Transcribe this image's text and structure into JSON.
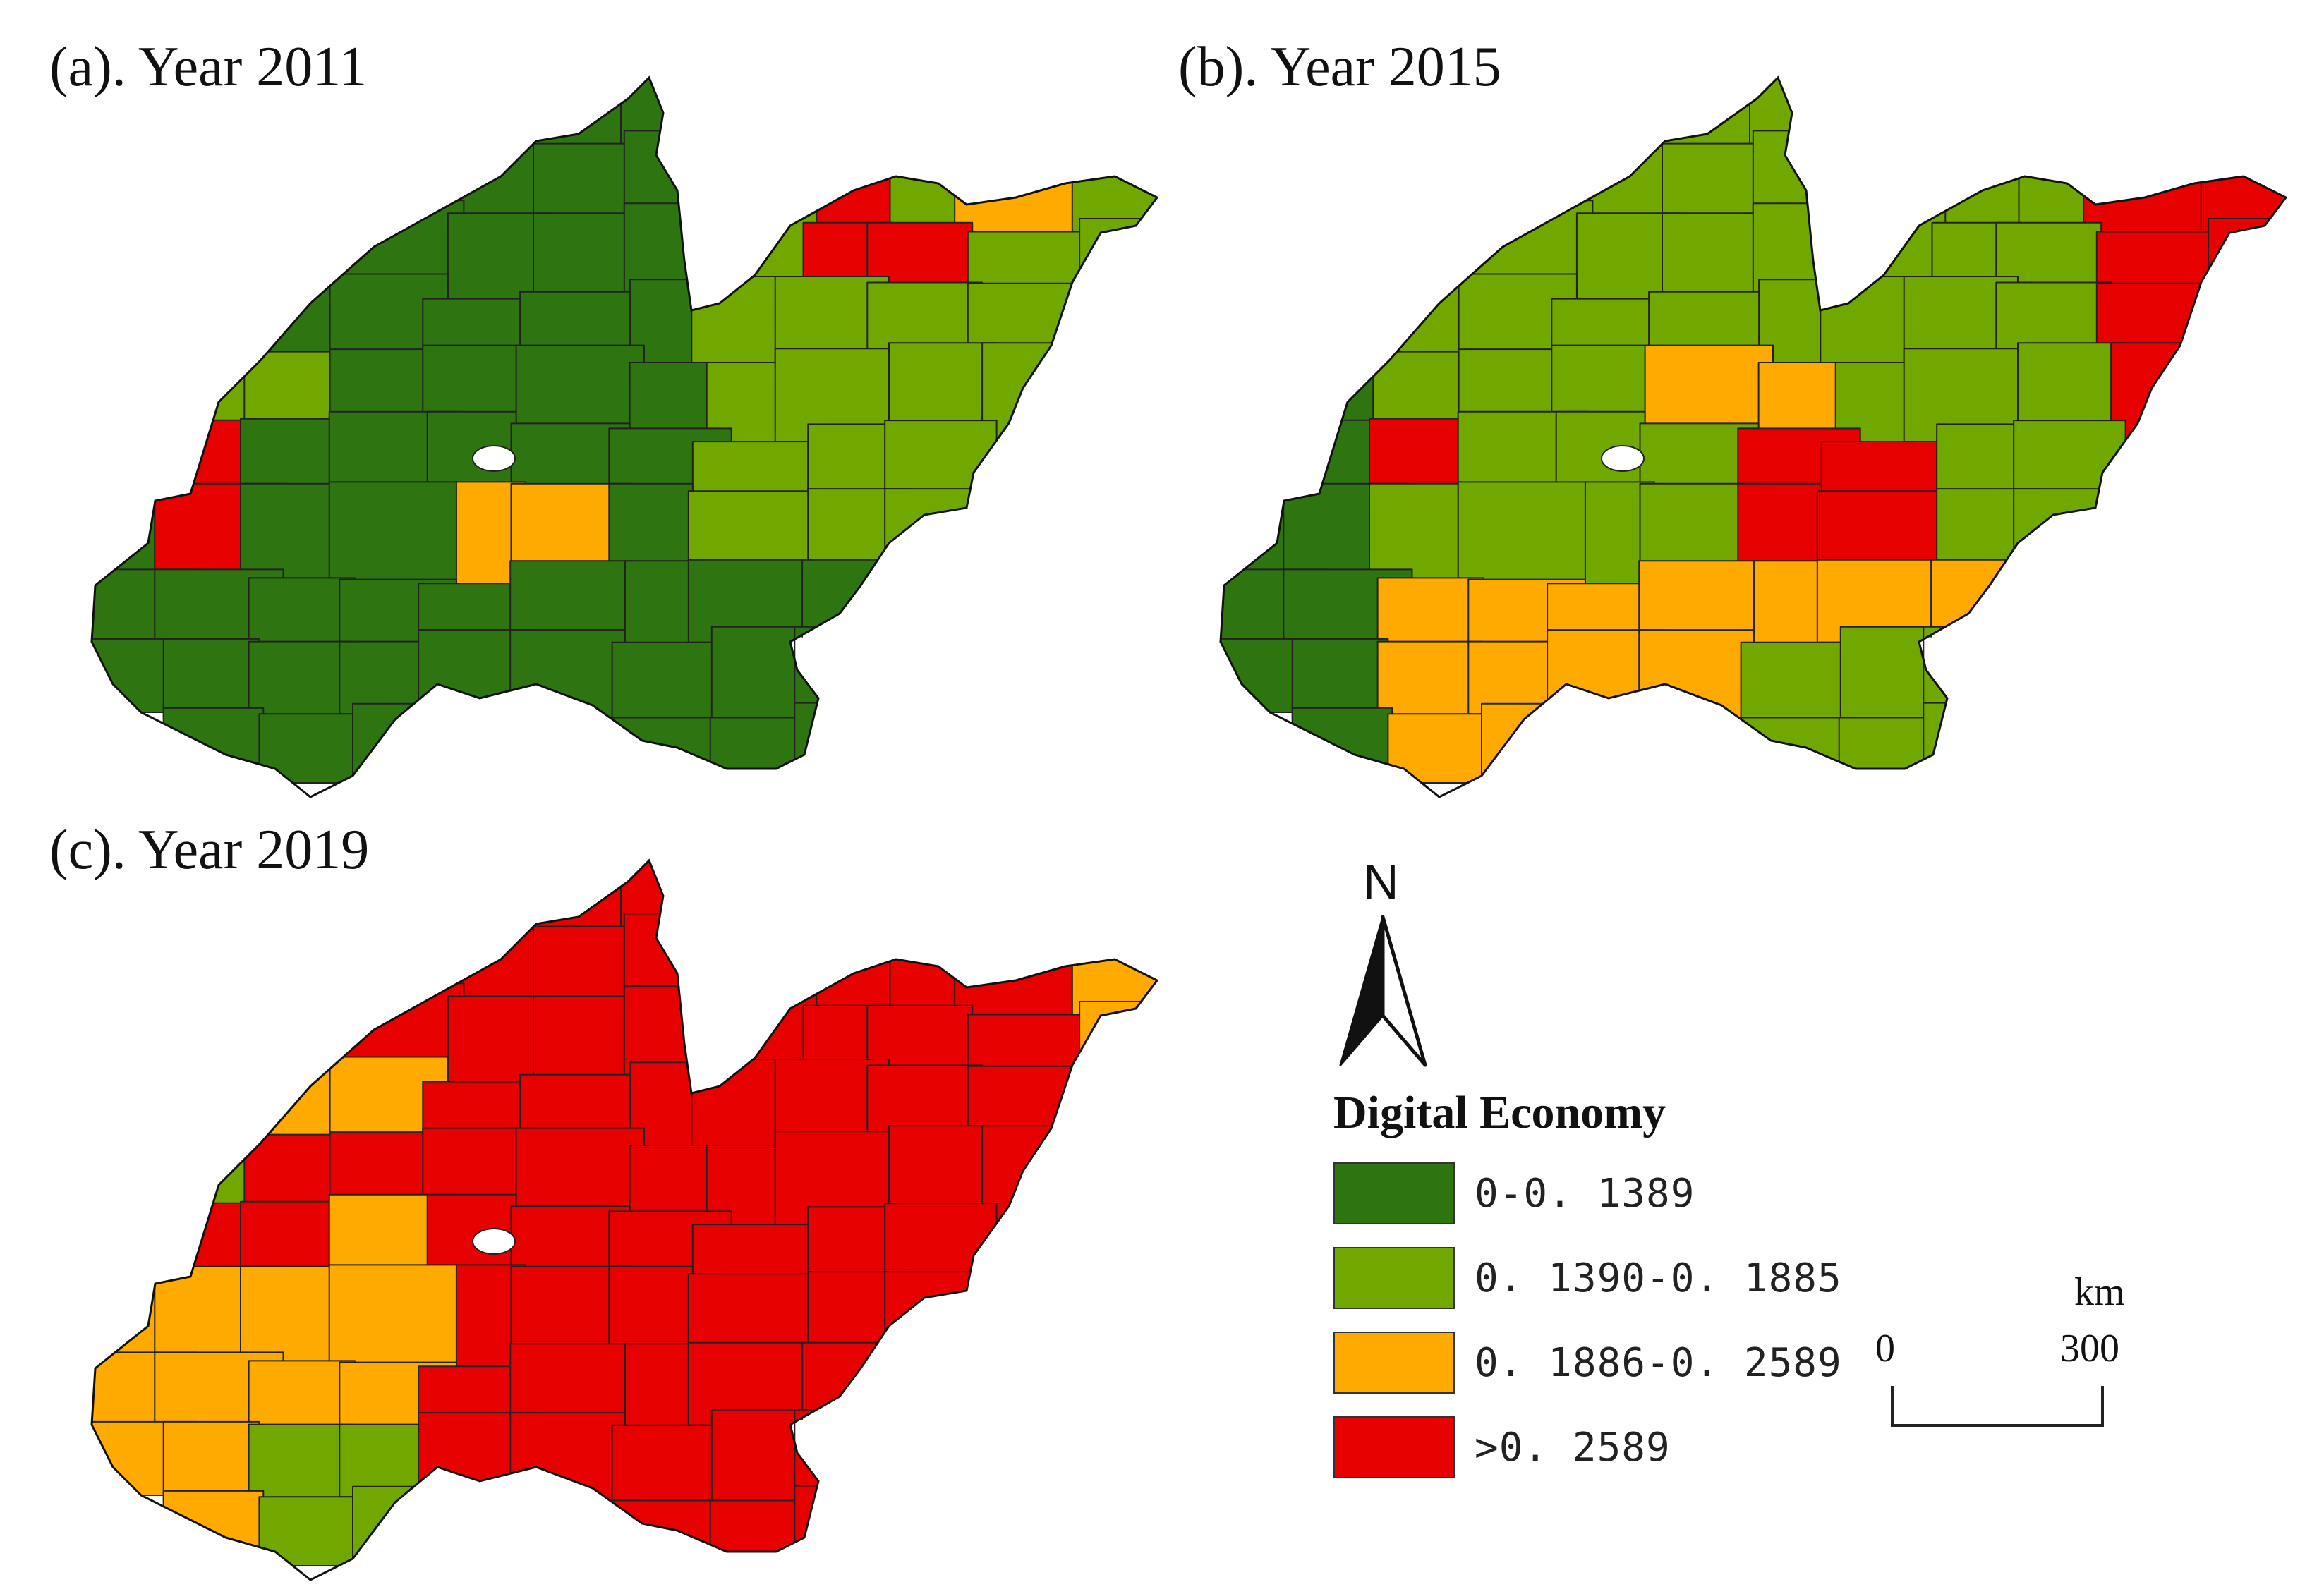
{
  "panels": [
    {
      "title": "(a). Year 2011"
    },
    {
      "title": "(b). Year 2015"
    },
    {
      "title": "(c). Year 2019"
    }
  ],
  "legend": {
    "title": "Digital Economy",
    "classes": [
      {
        "label": "0-0. 1389",
        "color": "#2e7512"
      },
      {
        "label": "0. 1390-0. 1885",
        "color": "#71a800"
      },
      {
        "label": "0. 1886-0. 2589",
        "color": "#ffaa00"
      },
      {
        "label": ">0. 2589",
        "color": "#e60000"
      }
    ]
  },
  "north_arrow": {
    "letter": "N"
  },
  "scale_bar": {
    "unit": "km",
    "start": "0",
    "end": "300"
  }
}
